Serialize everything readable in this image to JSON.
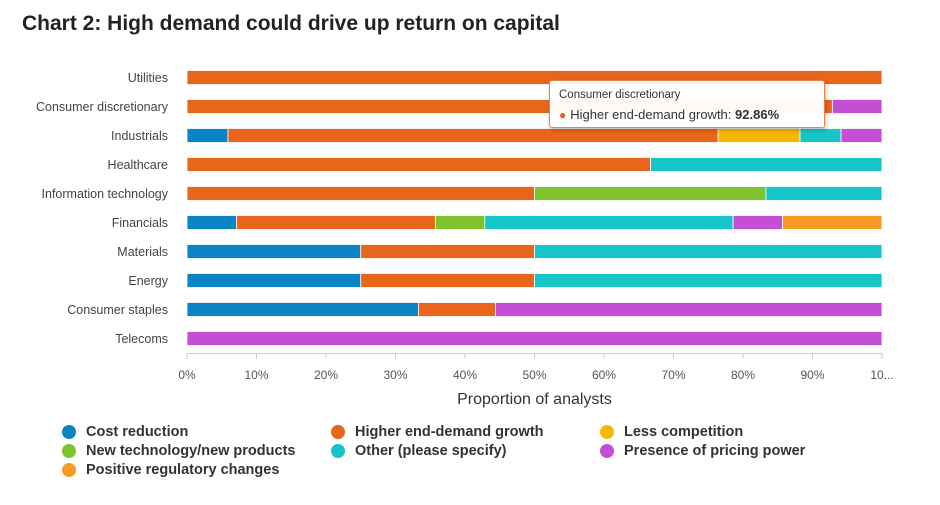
{
  "title": "Chart 2: High demand could drive up return on capital",
  "colors": {
    "Cost reduction": "#0b84c6",
    "Higher end-demand growth": "#e8661c",
    "Less competition": "#f5b800",
    "New technology/new products": "#7ec22c",
    "Other (please specify)": "#17c4c8",
    "Presence of pricing power": "#c44ed4",
    "Positive regulatory changes": "#f99a25"
  },
  "legend": [
    {
      "label": "Cost reduction",
      "color": "#0b84c6"
    },
    {
      "label": "Higher end-demand growth",
      "color": "#e8661c"
    },
    {
      "label": "Less competition",
      "color": "#f5b800"
    },
    {
      "label": "New technology/new products",
      "color": "#7ec22c"
    },
    {
      "label": "Other (please specify)",
      "color": "#17c4c8"
    },
    {
      "label": "Presence of pricing power",
      "color": "#c44ed4"
    },
    {
      "label": "Positive regulatory changes",
      "color": "#f99a25"
    }
  ],
  "tooltip": {
    "category": "Consumer discretionary",
    "series": "Higher end-demand growth",
    "value_text": "92.86%"
  },
  "chart_data": {
    "type": "bar",
    "orientation": "horizontal",
    "stacking": "percent",
    "categories": [
      "Utilities",
      "Consumer discretionary",
      "Industrials",
      "Healthcare",
      "Information technology",
      "Financials",
      "Materials",
      "Energy",
      "Consumer staples",
      "Telecoms"
    ],
    "xlabel": "Proportion of analysts",
    "ylabel": "",
    "xlim": [
      0,
      100
    ],
    "x_ticks": [
      "0%",
      "10%",
      "20%",
      "30%",
      "40%",
      "50%",
      "60%",
      "70%",
      "80%",
      "90%",
      "10..."
    ],
    "legend_position": "bottom",
    "grid": false,
    "series": [
      {
        "name": "Cost reduction",
        "values": [
          0,
          0,
          5.9,
          0,
          0,
          7.1,
          25,
          25,
          33.3,
          0
        ]
      },
      {
        "name": "Higher end-demand growth",
        "values": [
          100,
          92.86,
          70.6,
          66.7,
          50,
          28.6,
          25,
          25,
          11.1,
          0
        ]
      },
      {
        "name": "Less competition",
        "values": [
          0,
          0,
          11.8,
          0,
          0,
          0,
          0,
          0,
          0,
          0
        ]
      },
      {
        "name": "New technology/new products",
        "values": [
          0,
          0,
          0,
          0,
          33.3,
          7.1,
          0,
          0,
          0,
          0
        ]
      },
      {
        "name": "Other (please specify)",
        "values": [
          0,
          0,
          5.9,
          33.3,
          16.7,
          35.7,
          50,
          50,
          0,
          0
        ]
      },
      {
        "name": "Presence of pricing power",
        "values": [
          0,
          7.14,
          5.9,
          0,
          0,
          7.1,
          0,
          0,
          55.6,
          100
        ]
      },
      {
        "name": "Positive regulatory changes",
        "values": [
          0,
          0,
          0,
          0,
          0,
          14.3,
          0,
          0,
          0,
          0
        ]
      }
    ]
  }
}
